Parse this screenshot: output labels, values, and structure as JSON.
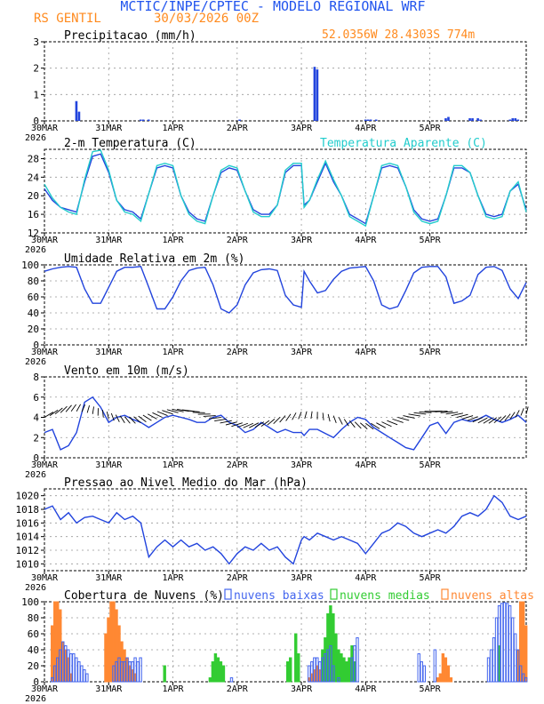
{
  "header": {
    "title": "MCTIC/INPE/CPTEC - MODELO REGIONAL WRF",
    "location": "RS GENTIL",
    "run": "30/03/2026 00Z",
    "coords": "52.0356W  28.4303S  774m",
    "title_color": "#2255ee",
    "accent_color": "#ff8a1e"
  },
  "x_axis": {
    "date_labels": [
      "30MAR",
      "31MAR",
      "1APR",
      "2APR",
      "3APR",
      "4APR",
      "5APR"
    ],
    "year": "2026"
  },
  "colors": {
    "series": "#2244dd",
    "apparent": "#22cccc",
    "low": "#4466ee",
    "mid": "#33cc33",
    "high": "#ff8833",
    "grid": "#999999"
  },
  "chart_data": [
    {
      "type": "bar",
      "title": "Precipitacao (mm/h)",
      "ylim": [
        0,
        3
      ],
      "yticks": [
        "0",
        "1",
        "2",
        "3"
      ],
      "x": [
        12,
        13,
        36,
        37,
        39,
        73,
        101,
        102,
        120,
        121,
        122,
        124,
        150,
        151,
        159,
        160,
        162,
        163,
        174,
        175,
        176,
        177
      ],
      "values": [
        0.75,
        0.35,
        0.05,
        0.05,
        0.05,
        0.05,
        2.05,
        1.95,
        0.05,
        0.05,
        0.05,
        0.05,
        0.1,
        0.15,
        0.1,
        0.1,
        0.1,
        0.05,
        0.05,
        0.1,
        0.1,
        0.05
      ]
    },
    {
      "type": "line",
      "title": "2-m Temperatura (C)",
      "legend": "Temperatura Aparente (C)",
      "ylim": [
        12,
        30
      ],
      "yticks": [
        "12",
        "16",
        "20",
        "24",
        "28"
      ],
      "series": [
        {
          "name": "2-m Temperatura",
          "x": [
            0,
            3,
            6,
            9,
            12,
            15,
            18,
            21,
            24,
            27,
            30,
            33,
            36,
            39,
            42,
            45,
            48,
            51,
            54,
            57,
            60,
            63,
            66,
            69,
            72,
            75,
            78,
            81,
            84,
            87,
            90,
            93,
            96,
            97,
            99,
            102,
            105,
            108,
            111,
            114,
            117,
            120,
            123,
            126,
            129,
            132,
            135,
            138,
            141,
            144,
            147,
            150,
            153,
            156,
            159,
            162,
            165,
            168,
            171,
            174,
            177,
            180
          ],
          "values": [
            21.5,
            19,
            17.5,
            17,
            16.5,
            23,
            28.5,
            29,
            25,
            19,
            17,
            16.5,
            15,
            20.5,
            26,
            26.5,
            26,
            20,
            16.5,
            15,
            14.5,
            20,
            25,
            26,
            25.5,
            21,
            17,
            16,
            16,
            18,
            25,
            26.5,
            26.5,
            18,
            19,
            23,
            27,
            23,
            20,
            16,
            15,
            14,
            20,
            26,
            26.5,
            26,
            22,
            17,
            15,
            14.5,
            15,
            20,
            26,
            26,
            25,
            20,
            16,
            15.5,
            16,
            21,
            22.5,
            17
          ]
        },
        {
          "name": "Temperatura Aparente",
          "x": [
            0,
            3,
            6,
            9,
            12,
            15,
            18,
            21,
            24,
            27,
            30,
            33,
            36,
            39,
            42,
            45,
            48,
            51,
            54,
            57,
            60,
            63,
            66,
            69,
            72,
            75,
            78,
            81,
            84,
            87,
            90,
            93,
            96,
            97,
            99,
            102,
            105,
            108,
            111,
            114,
            117,
            120,
            123,
            126,
            129,
            132,
            135,
            138,
            141,
            144,
            147,
            150,
            153,
            156,
            159,
            162,
            165,
            168,
            171,
            174,
            177,
            180
          ],
          "values": [
            22.5,
            19.5,
            17.5,
            16.5,
            16,
            23.5,
            29.5,
            29.8,
            25.5,
            19,
            16.5,
            16,
            14.5,
            20.5,
            26.5,
            27,
            26.5,
            20,
            16,
            14.5,
            14,
            20,
            25.5,
            26.5,
            26,
            21,
            16.5,
            15.5,
            15.5,
            18,
            25.5,
            27,
            27,
            17.5,
            19,
            23.5,
            27.5,
            23.5,
            20,
            15.5,
            14.5,
            13.5,
            20,
            26.5,
            27,
            26.5,
            22,
            16.5,
            14.5,
            14,
            14.5,
            20,
            26.5,
            26.5,
            25,
            20,
            15.5,
            15,
            15.5,
            21,
            23,
            16.5
          ]
        }
      ]
    },
    {
      "type": "line",
      "title": "Umidade Relativa em 2m (%)",
      "ylim": [
        0,
        100
      ],
      "yticks": [
        "0",
        "20",
        "40",
        "60",
        "80",
        "100"
      ],
      "series": [
        {
          "name": "Umidade Relativa",
          "x": [
            0,
            3,
            6,
            9,
            12,
            15,
            18,
            21,
            24,
            27,
            30,
            33,
            36,
            39,
            42,
            45,
            48,
            51,
            54,
            57,
            60,
            63,
            66,
            69,
            72,
            75,
            78,
            81,
            84,
            87,
            90,
            93,
            96,
            97,
            99,
            102,
            105,
            108,
            111,
            114,
            117,
            120,
            123,
            126,
            129,
            132,
            135,
            138,
            141,
            144,
            147,
            150,
            153,
            156,
            159,
            162,
            165,
            168,
            171,
            174,
            177,
            180
          ],
          "values": [
            92,
            95,
            97,
            98,
            97,
            70,
            52,
            52,
            72,
            92,
            97,
            97,
            98,
            72,
            45,
            45,
            60,
            80,
            93,
            96,
            97,
            75,
            45,
            40,
            50,
            75,
            90,
            94,
            95,
            93,
            62,
            50,
            47,
            92,
            80,
            65,
            68,
            82,
            92,
            96,
            97,
            98,
            80,
            50,
            45,
            48,
            68,
            90,
            97,
            98,
            98,
            85,
            52,
            55,
            62,
            88,
            97,
            98,
            93,
            70,
            58,
            78
          ]
        }
      ]
    },
    {
      "type": "line",
      "title": "Vento em 10m (m/s)",
      "ylim": [
        0,
        8
      ],
      "yticks": [
        "0",
        "2",
        "4",
        "6",
        "8"
      ],
      "series": [
        {
          "name": "Vento em 10m",
          "x": [
            0,
            3,
            6,
            9,
            12,
            15,
            18,
            21,
            24,
            27,
            30,
            33,
            36,
            39,
            42,
            45,
            48,
            51,
            54,
            57,
            60,
            63,
            66,
            69,
            72,
            75,
            78,
            81,
            84,
            87,
            90,
            93,
            96,
            97,
            99,
            102,
            105,
            108,
            111,
            114,
            117,
            120,
            123,
            126,
            129,
            132,
            135,
            138,
            141,
            144,
            147,
            150,
            153,
            156,
            159,
            162,
            165,
            168,
            171,
            174,
            177,
            180
          ],
          "values": [
            2.5,
            2.8,
            0.8,
            1.2,
            2.5,
            5.5,
            6,
            5,
            3.5,
            4,
            4.2,
            3.8,
            3.5,
            3,
            3.5,
            4,
            4.2,
            4,
            3.8,
            3.5,
            3.5,
            4,
            4.2,
            3.5,
            3.2,
            2.5,
            2.8,
            3.5,
            3,
            2.5,
            2.8,
            2.5,
            2.5,
            2.2,
            2.8,
            2.8,
            2.4,
            2,
            2.8,
            3.5,
            4,
            3.8,
            3,
            2.5,
            2,
            1.5,
            1,
            0.8,
            2,
            3.2,
            3.5,
            2.4,
            3.5,
            3.8,
            3.6,
            3.8,
            4.2,
            3.8,
            3.5,
            3.8,
            4.2,
            3.5
          ]
        }
      ]
    },
    {
      "type": "line",
      "title": "Pressao ao Nivel Medio do Mar (hPa)",
      "ylim": [
        1009,
        1021
      ],
      "yticks": [
        "1010",
        "1012",
        "1014",
        "1016",
        "1018",
        "1020"
      ],
      "series": [
        {
          "name": "Pressao",
          "x": [
            0,
            3,
            6,
            9,
            12,
            15,
            18,
            21,
            24,
            27,
            30,
            33,
            36,
            39,
            42,
            45,
            48,
            51,
            54,
            57,
            60,
            63,
            66,
            69,
            72,
            75,
            78,
            81,
            84,
            87,
            90,
            93,
            96,
            97,
            99,
            102,
            105,
            108,
            111,
            114,
            117,
            120,
            123,
            126,
            129,
            132,
            135,
            138,
            141,
            144,
            147,
            150,
            153,
            156,
            159,
            162,
            165,
            168,
            171,
            174,
            177,
            180
          ],
          "values": [
            1018,
            1018.5,
            1016.5,
            1017.5,
            1016,
            1016.8,
            1017,
            1016.5,
            1016,
            1017.5,
            1016.5,
            1017,
            1016,
            1011,
            1012.5,
            1013.5,
            1012.5,
            1013.5,
            1012.5,
            1013,
            1012,
            1012.5,
            1011.5,
            1010,
            1011.5,
            1012.5,
            1012,
            1013,
            1012,
            1012.5,
            1011,
            1010,
            1013.5,
            1014,
            1013.5,
            1014.5,
            1014,
            1013.5,
            1014,
            1013.5,
            1013,
            1011.5,
            1013,
            1014.5,
            1015,
            1016,
            1015.5,
            1014.5,
            1014,
            1014.5,
            1015,
            1014.5,
            1015.5,
            1017,
            1017.5,
            1017,
            1018,
            1020,
            1019,
            1017,
            1016.5,
            1017
          ]
        }
      ]
    },
    {
      "type": "bar",
      "title": "Cobertura de Nuvens (%)",
      "ylim": [
        0,
        100
      ],
      "yticks": [
        "0",
        "20",
        "40",
        "60",
        "80",
        "100"
      ],
      "legend": [
        "nuvens baixas",
        "nuvens medias",
        "nuvens altas"
      ],
      "series": [
        {
          "name": "nuvens baixas",
          "x": [
            3,
            4,
            5,
            6,
            7,
            8,
            9,
            10,
            11,
            12,
            13,
            14,
            15,
            16,
            26,
            27,
            28,
            29,
            30,
            31,
            32,
            33,
            34,
            35,
            36,
            70,
            99,
            100,
            101,
            102,
            103,
            104,
            105,
            106,
            107,
            108,
            110,
            115,
            116,
            117,
            140,
            141,
            142,
            146,
            166,
            167,
            168,
            169,
            170,
            171,
            172,
            173,
            174,
            175,
            176,
            177,
            178,
            179,
            180
          ],
          "values": [
            5,
            20,
            30,
            40,
            50,
            45,
            40,
            35,
            35,
            30,
            25,
            20,
            15,
            10,
            20,
            25,
            30,
            25,
            25,
            30,
            25,
            25,
            30,
            25,
            30,
            5,
            20,
            25,
            30,
            30,
            25,
            30,
            35,
            40,
            45,
            20,
            5,
            30,
            45,
            55,
            35,
            25,
            20,
            40,
            30,
            40,
            55,
            80,
            95,
            98,
            99,
            98,
            95,
            80,
            60,
            40,
            20,
            10,
            5
          ]
        },
        {
          "name": "nuvens medias",
          "x": [
            45,
            62,
            63,
            64,
            65,
            66,
            67,
            91,
            92,
            94,
            95,
            104,
            105,
            106,
            107,
            108,
            109,
            110,
            111,
            112,
            113,
            114,
            115,
            116,
            170
          ],
          "values": [
            20,
            5,
            25,
            35,
            30,
            25,
            20,
            25,
            30,
            60,
            35,
            40,
            55,
            85,
            95,
            85,
            60,
            40,
            35,
            30,
            25,
            30,
            45,
            25,
            45
          ]
        },
        {
          "name": "nuvens altas",
          "x": [
            3,
            4,
            5,
            6,
            7,
            8,
            9,
            10,
            23,
            24,
            25,
            26,
            27,
            28,
            29,
            30,
            31,
            32,
            33,
            34,
            99,
            100,
            101,
            102,
            103,
            104,
            105,
            106,
            147,
            148,
            149,
            150,
            151,
            152,
            177,
            178,
            179,
            180
          ],
          "values": [
            70,
            100,
            100,
            90,
            50,
            40,
            30,
            10,
            60,
            80,
            100,
            100,
            90,
            70,
            50,
            40,
            30,
            20,
            15,
            10,
            5,
            10,
            15,
            20,
            15,
            10,
            8,
            5,
            5,
            10,
            35,
            30,
            20,
            5,
            40,
            100,
            100,
            70
          ]
        }
      ]
    }
  ]
}
